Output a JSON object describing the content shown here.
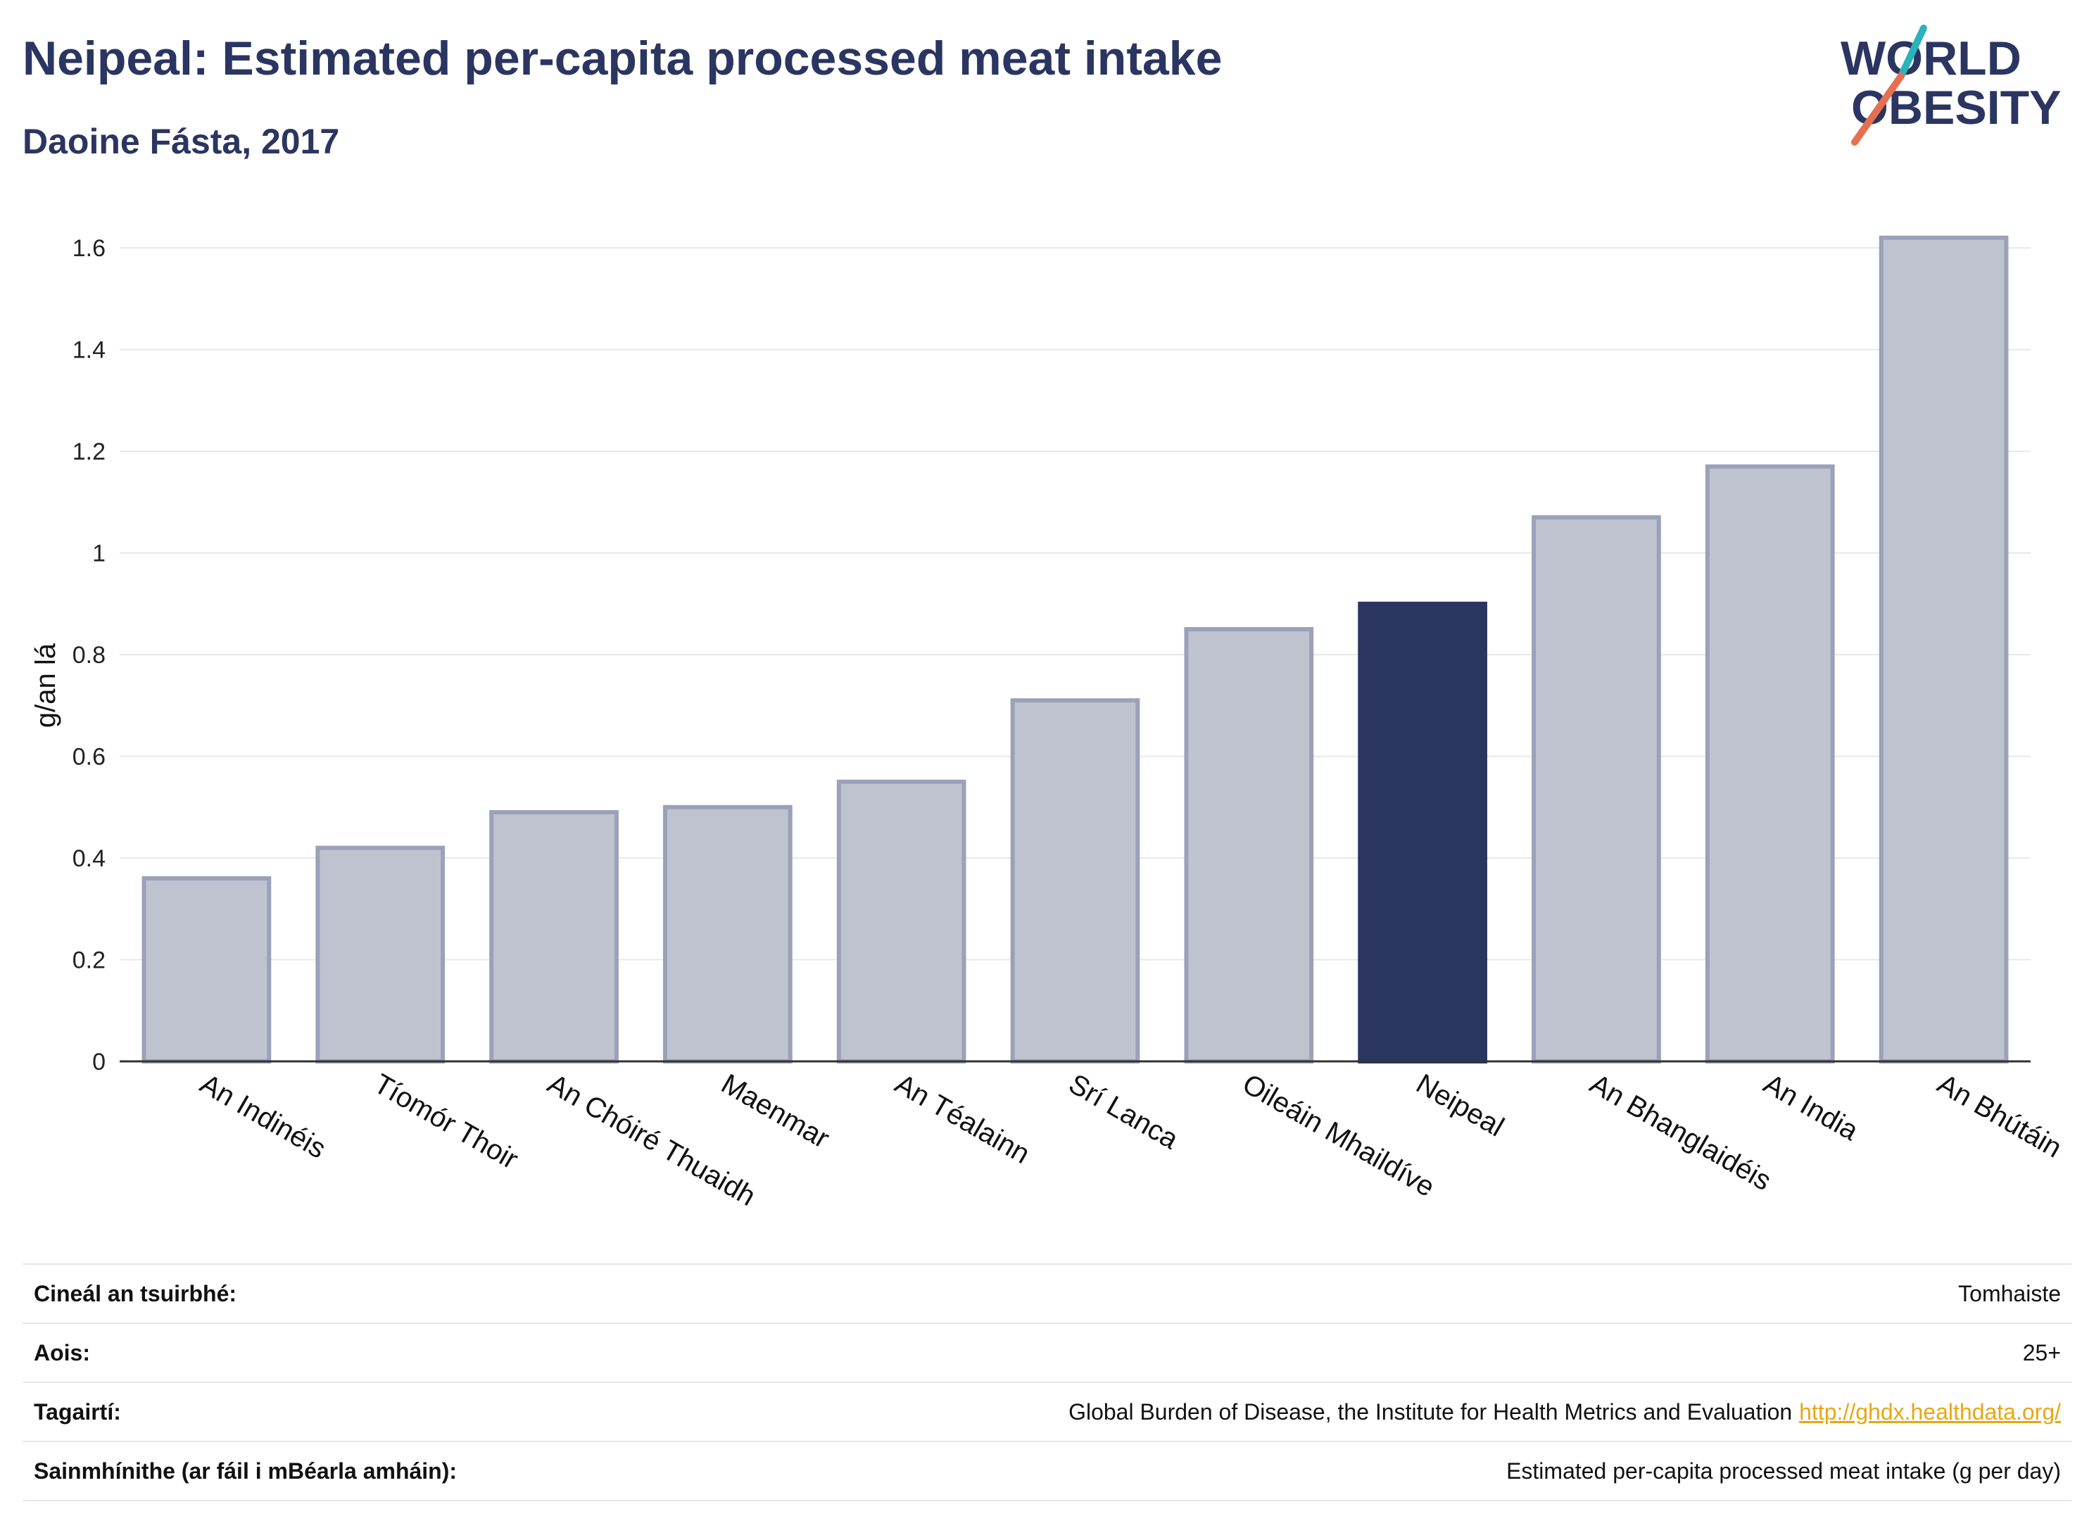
{
  "header": {
    "title": "Neipeal: Estimated per-capita processed meat intake",
    "subtitle": "Daoine Fásta, 2017"
  },
  "logo": {
    "line1": "WORLD",
    "line2": "OBESITY",
    "accent_colors": [
      "#2ab3b8",
      "#e76f51"
    ]
  },
  "colors": {
    "highlight": "#2b3561",
    "bar": "#bfc3d0",
    "bar_border": "#9ba1b8",
    "grid": "#e6e8ee",
    "link": "#e8a713"
  },
  "chart_data": {
    "type": "bar",
    "title": "Neipeal: Estimated per-capita processed meat intake",
    "subtitle": "Daoine Fásta, 2017",
    "ylabel": "g/an lá",
    "xlabel": "",
    "ylim": [
      0,
      1.7
    ],
    "yticks": [
      0,
      0.2,
      0.4,
      0.6,
      0.8,
      1,
      1.2,
      1.4,
      1.6
    ],
    "grid": true,
    "categories": [
      "An Indinéis",
      "Tíomór Thoir",
      "An Chóiré Thuaidh",
      "Maenmar",
      "An Téalainn",
      "Srí Lanca",
      "Oileáin Mhaildíve",
      "Neipeal",
      "An Bhanglaidéis",
      "An India",
      "An Bhútáin"
    ],
    "values": [
      0.36,
      0.42,
      0.49,
      0.5,
      0.55,
      0.71,
      0.85,
      0.9,
      1.07,
      1.17,
      1.62
    ],
    "highlight": "Neipeal"
  },
  "info": {
    "rows": [
      {
        "key": "Cineál an tsuirbhé:",
        "value": "Tomhaiste"
      },
      {
        "key": "Aois:",
        "value": "25+"
      },
      {
        "key": "Tagairtí:",
        "value": "Global Burden of Disease, the Institute for Health Metrics and Evaluation",
        "link": "http://ghdx.healthdata.org/"
      },
      {
        "key": "Sainmhínithe (ar fáil i mBéarla amháin):",
        "value": "Estimated per-capita processed meat intake (g per day)"
      }
    ]
  }
}
